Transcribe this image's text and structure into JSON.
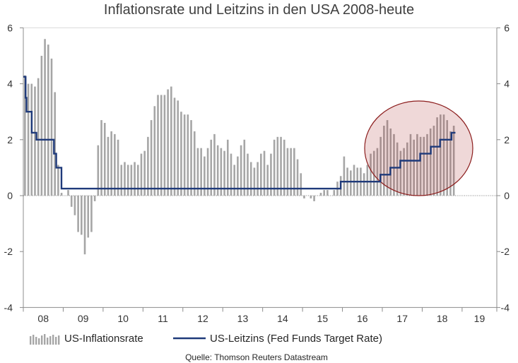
{
  "colors": {
    "bars": "#a6a6a6",
    "line": "#1f3a7a",
    "highlight_fill": "#b03a3a",
    "highlight_stroke": "#8b1c1c",
    "axis": "#8c8c8c"
  },
  "chart_data": {
    "type": "bar",
    "title": "Inflationsrate und Leitzins in den USA 2008-heute",
    "source_note": "Quelle: Thomson Reuters Datastream",
    "xlabel": "",
    "ylabel": "",
    "xlim": [
      2008.0,
      2019.87
    ],
    "ylim": [
      -4,
      6
    ],
    "yticks": [
      6,
      4,
      2,
      0,
      -2,
      -4
    ],
    "y2ticks": [
      6,
      4,
      2,
      0,
      -2,
      -4
    ],
    "xtick_labels": [
      "08",
      "09",
      "10",
      "11",
      "12",
      "13",
      "14",
      "15",
      "16",
      "17",
      "18",
      "19"
    ],
    "legend": "bottom",
    "series": [
      {
        "name": "US-Inflationsrate",
        "type": "bar",
        "frequency": "monthly",
        "start": "2008-01",
        "values": [
          4.3,
          4.0,
          4.0,
          3.9,
          4.2,
          5.0,
          5.6,
          5.4,
          4.9,
          3.7,
          1.1,
          0.1,
          0.0,
          0.2,
          -0.4,
          -0.7,
          -1.3,
          -1.4,
          -2.1,
          -1.5,
          -1.3,
          -0.2,
          1.8,
          2.7,
          2.6,
          2.1,
          2.3,
          2.2,
          2.0,
          1.1,
          1.2,
          1.1,
          1.1,
          1.2,
          1.1,
          1.5,
          1.6,
          2.1,
          2.7,
          3.2,
          3.6,
          3.6,
          3.6,
          3.8,
          3.9,
          3.5,
          3.4,
          3.0,
          2.9,
          2.9,
          2.7,
          2.3,
          1.7,
          1.7,
          1.4,
          1.7,
          2.0,
          2.2,
          1.8,
          1.7,
          1.6,
          2.0,
          1.5,
          1.1,
          1.4,
          1.8,
          2.0,
          1.5,
          1.2,
          1.0,
          1.2,
          1.5,
          1.6,
          1.1,
          1.5,
          2.0,
          2.1,
          2.1,
          2.0,
          1.7,
          1.7,
          1.7,
          1.3,
          0.8,
          -0.1,
          0.0,
          -0.1,
          -0.2,
          0.0,
          0.1,
          0.2,
          0.2,
          0.0,
          0.2,
          0.5,
          0.7,
          1.4,
          1.0,
          0.9,
          1.1,
          1.0,
          1.0,
          0.8,
          1.1,
          1.5,
          1.6,
          1.7,
          2.1,
          2.5,
          2.7,
          2.4,
          2.2,
          1.9,
          1.6,
          1.7,
          1.9,
          2.2,
          2.0,
          2.2,
          2.1,
          2.1,
          2.2,
          2.4,
          2.5,
          2.8,
          2.9,
          2.9,
          2.7,
          2.3,
          2.5
        ]
      },
      {
        "name": "US-Leitzins (Fed Funds Target Rate)",
        "type": "step-line",
        "points": [
          {
            "date": "2008-01-01",
            "value": 4.25
          },
          {
            "date": "2008-01-22",
            "value": 3.5
          },
          {
            "date": "2008-01-30",
            "value": 3.0
          },
          {
            "date": "2008-03-18",
            "value": 2.25
          },
          {
            "date": "2008-04-30",
            "value": 2.0
          },
          {
            "date": "2008-10-08",
            "value": 1.5
          },
          {
            "date": "2008-10-29",
            "value": 1.0
          },
          {
            "date": "2008-12-16",
            "value": 0.25
          },
          {
            "date": "2015-12-16",
            "value": 0.5
          },
          {
            "date": "2016-12-14",
            "value": 0.75
          },
          {
            "date": "2017-03-15",
            "value": 1.0
          },
          {
            "date": "2017-06-14",
            "value": 1.25
          },
          {
            "date": "2017-12-13",
            "value": 1.5
          },
          {
            "date": "2018-03-21",
            "value": 1.75
          },
          {
            "date": "2018-06-13",
            "value": 2.0
          },
          {
            "date": "2018-09-26",
            "value": 2.25
          },
          {
            "date": "2018-11-01",
            "value": 2.25
          }
        ]
      }
    ]
  }
}
